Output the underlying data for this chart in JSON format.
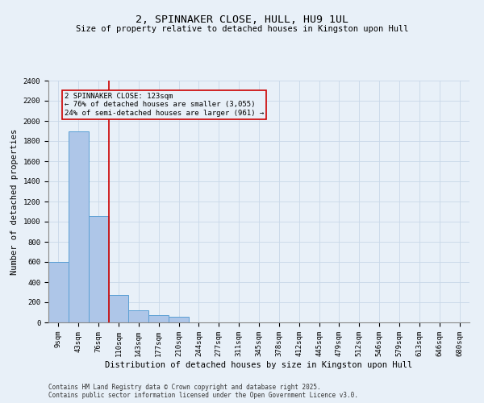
{
  "title": "2, SPINNAKER CLOSE, HULL, HU9 1UL",
  "subtitle": "Size of property relative to detached houses in Kingston upon Hull",
  "xlabel": "Distribution of detached houses by size in Kingston upon Hull",
  "ylabel": "Number of detached properties",
  "footer_line1": "Contains HM Land Registry data © Crown copyright and database right 2025.",
  "footer_line2": "Contains public sector information licensed under the Open Government Licence v3.0.",
  "categories": [
    "9sqm",
    "43sqm",
    "76sqm",
    "110sqm",
    "143sqm",
    "177sqm",
    "210sqm",
    "244sqm",
    "277sqm",
    "311sqm",
    "345sqm",
    "378sqm",
    "412sqm",
    "445sqm",
    "479sqm",
    "512sqm",
    "546sqm",
    "579sqm",
    "613sqm",
    "646sqm",
    "680sqm"
  ],
  "values": [
    600,
    1900,
    1060,
    270,
    120,
    70,
    60,
    0,
    0,
    0,
    0,
    0,
    0,
    0,
    0,
    0,
    0,
    0,
    0,
    0,
    0
  ],
  "ylim": [
    0,
    2400
  ],
  "yticks": [
    0,
    200,
    400,
    600,
    800,
    1000,
    1200,
    1400,
    1600,
    1800,
    2000,
    2200,
    2400
  ],
  "bar_color": "#aec6e8",
  "bar_edge_color": "#5a9fd4",
  "grid_color": "#c8d8e8",
  "bg_color": "#e8f0f8",
  "vline_color": "#cc0000",
  "vline_x_index": 2.5,
  "annotation_text": "2 SPINNAKER CLOSE: 123sqm\n← 76% of detached houses are smaller (3,055)\n24% of semi-detached houses are larger (961) →",
  "annotation_box_color": "#cc0000",
  "title_fontsize": 9.5,
  "subtitle_fontsize": 7.5,
  "tick_fontsize": 6.5,
  "ylabel_fontsize": 7.5,
  "xlabel_fontsize": 7.5,
  "footer_fontsize": 5.5,
  "annotation_fontsize": 6.5
}
